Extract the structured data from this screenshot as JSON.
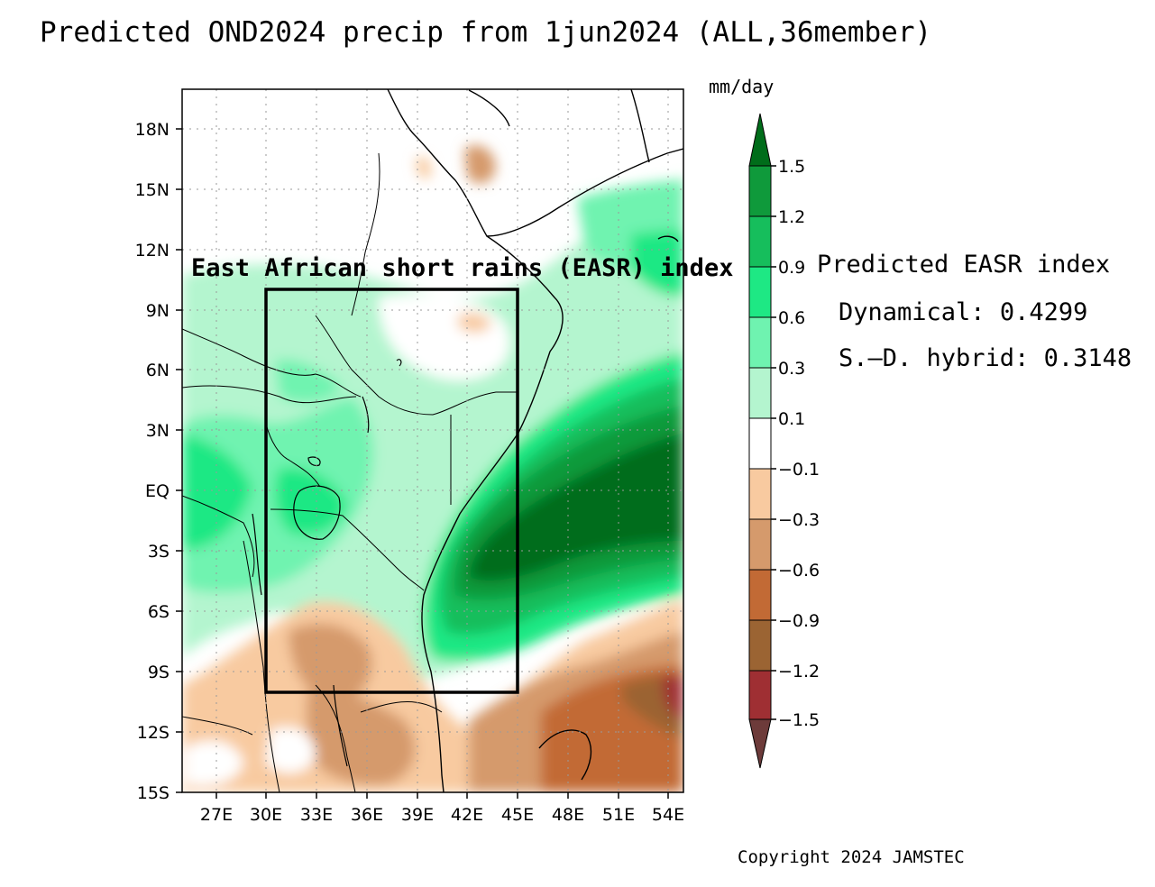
{
  "title": "Predicted OND2024 precip from 1jun2024 (ALL,36member)",
  "map": {
    "lon_range": [
      25,
      55
    ],
    "lat_range": [
      -15,
      20
    ],
    "lon_ticks": [
      "27E",
      "30E",
      "33E",
      "36E",
      "39E",
      "42E",
      "45E",
      "48E",
      "51E",
      "54E"
    ],
    "lat_ticks": [
      "18N",
      "15N",
      "12N",
      "9N",
      "6N",
      "3N",
      "EQ",
      "3S",
      "6S",
      "9S",
      "12S",
      "15S"
    ],
    "region_box": {
      "lon": [
        30,
        45
      ],
      "lat": [
        -10,
        10
      ]
    },
    "region_title": "East African short rains (EASR) index"
  },
  "colorbar": {
    "units": "mm/day",
    "labels": [
      "1.5",
      "1.2",
      "0.9",
      "0.6",
      "0.3",
      "0.1",
      "−0.1",
      "−0.3",
      "−0.6",
      "−0.9",
      "−1.2",
      "−1.5"
    ],
    "colors": [
      "#006d1a",
      "#0f9a3b",
      "#16be5c",
      "#1ee884",
      "#6ff3b0",
      "#b4f5cf",
      "#ffffff",
      "#f8caa0",
      "#d59a6c",
      "#c26a35",
      "#9b6433",
      "#9f2f33",
      "#6d3b3a"
    ]
  },
  "index": {
    "heading": "Predicted EASR index",
    "dynamical_label": "Dynamical:",
    "dynamical_value": "0.4299",
    "hybrid_label": "S.–D. hybrid:",
    "hybrid_value": "0.3148"
  },
  "copyright": "Copyright 2024 JAMSTEC"
}
